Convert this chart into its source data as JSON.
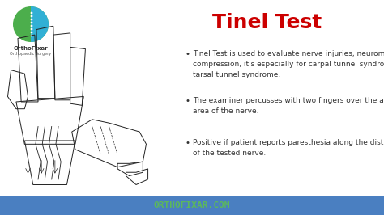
{
  "title": "Tinel Test",
  "title_color": "#cc0000",
  "title_fontsize": 18,
  "background_color": "#ffffff",
  "footer_color": "#4a7fc1",
  "footer_text": "ORTHOFIXAR.COM",
  "footer_text_color": "#5cb85c",
  "footer_fontsize": 8,
  "bullet_color": "#333333",
  "bullet_fontsize": 6.5,
  "bullets": [
    "Tinel Test is used to evaluate nerve injuries, neuromas, and\ncompression, it's especially for carpal tunnel syndrome and\ntarsal tunnel syndrome.",
    "The examiner percusses with two fingers over the affected\narea of the nerve.",
    "Positive if patient reports paresthesia along the distribution\nof the tested nerve."
  ],
  "logo_circle_green": "#4cae4c",
  "logo_circle_blue": "#31b0d5"
}
